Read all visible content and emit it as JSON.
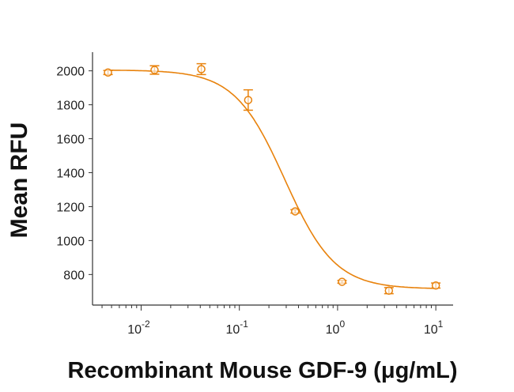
{
  "chart_data": {
    "type": "scatter",
    "title": "",
    "xlabel": "Recombinant Mouse GDF-9 (μg/mL)",
    "ylabel": "Mean RFU",
    "xscale": "log",
    "xlim": [
      0.0032,
      15
    ],
    "ylim": [
      620,
      2110
    ],
    "x_ticks": [
      {
        "base": "10",
        "exp": "-2",
        "value": 0.01
      },
      {
        "base": "10",
        "exp": "-1",
        "value": 0.1
      },
      {
        "base": "10",
        "exp": "0",
        "value": 1
      },
      {
        "base": "10",
        "exp": "1",
        "value": 10
      }
    ],
    "y_ticks": [
      "800",
      "1000",
      "1200",
      "1400",
      "1600",
      "1800",
      "2000"
    ],
    "color": "#e8820c",
    "series": [
      {
        "name": "GDF-9",
        "x": [
          0.0046,
          0.0137,
          0.041,
          0.123,
          0.37,
          1.11,
          3.33,
          10
        ],
        "y": [
          1990,
          2005,
          2010,
          1828,
          1172,
          757,
          705,
          735
        ],
        "error": [
          12,
          25,
          32,
          60,
          10,
          8,
          18,
          15
        ]
      }
    ],
    "fit": {
      "model": "4PL",
      "top": 2005,
      "bottom": 715,
      "ec50": 0.29,
      "hill": 1.7
    },
    "grid": false,
    "legend": "none"
  }
}
